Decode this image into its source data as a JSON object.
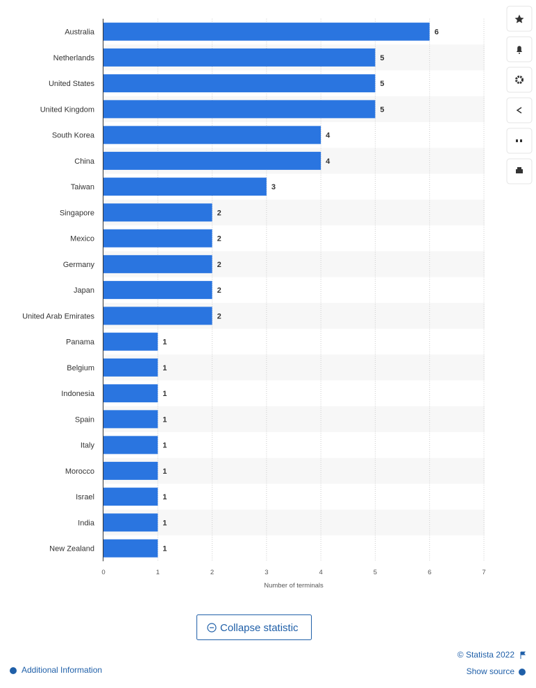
{
  "chart_data": {
    "type": "bar",
    "orientation": "horizontal",
    "x_label": "Number of terminals",
    "categories": [
      "Australia",
      "Netherlands",
      "United States",
      "United Kingdom",
      "South Korea",
      "China",
      "Taiwan",
      "Singapore",
      "Mexico",
      "Germany",
      "Japan",
      "United Arab Emirates",
      "Panama",
      "Belgium",
      "Indonesia",
      "Spain",
      "Italy",
      "Morocco",
      "Israel",
      "India",
      "New Zealand"
    ],
    "values": [
      6,
      5,
      5,
      5,
      4,
      4,
      3,
      2,
      2,
      2,
      2,
      2,
      1,
      1,
      1,
      1,
      1,
      1,
      1,
      1,
      1
    ],
    "color": "#2a75e0",
    "xlim": [
      0,
      7
    ],
    "xticks": [
      0,
      1,
      2,
      3,
      4,
      5,
      6,
      7
    ],
    "grid": true
  },
  "ui": {
    "collapse_button": "Collapse statistic",
    "copyright": "© Statista 2022",
    "additional_information": "Additional Information",
    "show_source": "Show source"
  }
}
